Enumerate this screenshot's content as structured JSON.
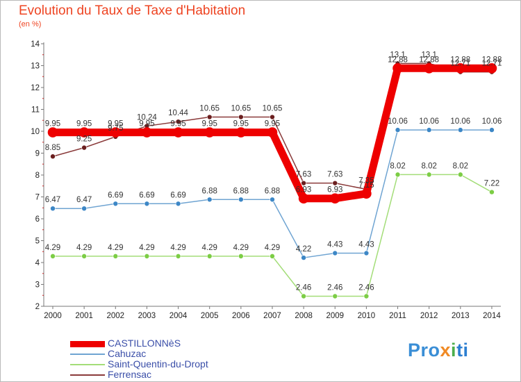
{
  "title": "Evolution du Taux de Taxe d'Habitation",
  "unit": "(en %)",
  "logo": {
    "p1": "Pro",
    "p2": "x",
    "p3": "i",
    "p4": "ti"
  },
  "colors": {
    "castillonnes": "#ee0000",
    "cahuzac": "#4a90c8",
    "saint_quentin": "#8ed35a",
    "ferrensac": "#7a2e2e",
    "title": "#ee4422"
  },
  "chart_data": {
    "type": "line",
    "title": "Evolution du Taux de Taxe d'Habitation",
    "ylabel": "(en %)",
    "xlabel": "",
    "ylim": [
      2,
      14
    ],
    "grid": false,
    "legend": "bottom",
    "categories": [
      "2000",
      "2001",
      "2002",
      "2003",
      "2004",
      "2005",
      "2006",
      "2007",
      "2008",
      "2009",
      "2010",
      "2011",
      "2012",
      "2013",
      "2014"
    ],
    "yticks": [
      "2",
      "3",
      "4",
      "5",
      "6",
      "7",
      "8",
      "9",
      "10",
      "11",
      "12",
      "13",
      "14"
    ],
    "series": [
      {
        "name": "CASTILLONNèS",
        "color": "#ee0000",
        "width": 11,
        "dot": "#ee0000",
        "values": [
          9.95,
          9.95,
          9.95,
          9.95,
          9.95,
          9.95,
          9.95,
          9.95,
          6.93,
          6.93,
          7.15,
          12.88,
          12.88,
          12.88,
          12.88
        ],
        "labels": [
          "9.95",
          "9.95",
          "9.95",
          "9.95",
          "9.95",
          "9.95",
          "9.95",
          "9.95",
          "6.93",
          "6.93",
          "7.15",
          "12.88",
          "12.88",
          "12.88",
          "12.88"
        ]
      },
      {
        "name": "Cahuzac",
        "color": "#6fa4d2",
        "width": 1.5,
        "dot": "#3d87c6",
        "values": [
          6.47,
          6.47,
          6.69,
          6.69,
          6.69,
          6.88,
          6.88,
          6.88,
          4.22,
          4.43,
          4.43,
          10.06,
          10.06,
          10.06,
          10.06
        ],
        "labels": [
          "6.47",
          "6.47",
          "6.69",
          "6.69",
          "6.69",
          "6.88",
          "6.88",
          "6.88",
          "4.22",
          "4.43",
          "4.43",
          "10.06",
          "10.06",
          "10.06",
          "10.06"
        ]
      },
      {
        "name": "Saint-Quentin-du-Dropt",
        "color": "#a3dd78",
        "width": 1.5,
        "dot": "#7ccd45",
        "values": [
          4.29,
          4.29,
          4.29,
          4.29,
          4.29,
          4.29,
          4.29,
          4.29,
          2.46,
          2.46,
          2.46,
          8.02,
          8.02,
          8.02,
          7.22
        ],
        "labels": [
          "4.29",
          "4.29",
          "4.29",
          "4.29",
          "4.29",
          "4.29",
          "4.29",
          "4.29",
          "2.46",
          "2.46",
          "2.46",
          "8.02",
          "8.02",
          "8.02",
          "7.22"
        ]
      },
      {
        "name": "Ferrensac",
        "color": "#8a3a3a",
        "width": 1.5,
        "dot": "#6b1f1f",
        "values": [
          8.85,
          9.25,
          9.75,
          10.24,
          10.44,
          10.65,
          10.65,
          10.65,
          7.63,
          7.63,
          7.35,
          13.1,
          13.1,
          12.71,
          12.71
        ],
        "labels": [
          "8.85",
          "9.25",
          "9.75",
          "10.24",
          "10.44",
          "10.65",
          "10.65",
          "10.65",
          "7.63",
          "7.63",
          "7.35",
          "13.1",
          "13.1",
          "12.71",
          "12.71"
        ]
      }
    ]
  }
}
